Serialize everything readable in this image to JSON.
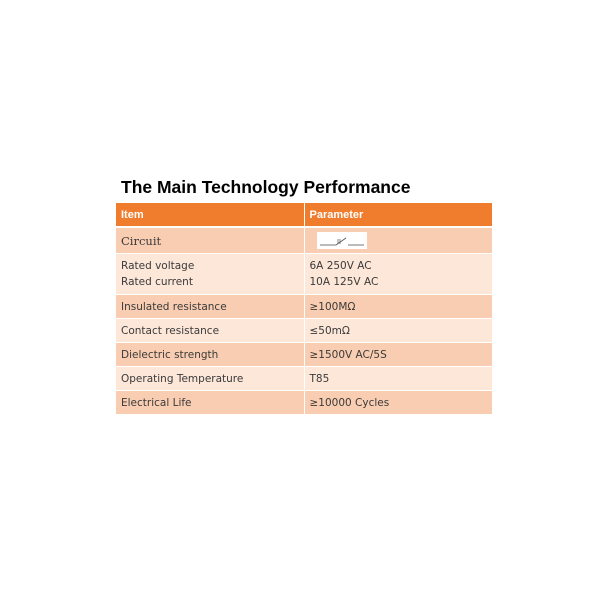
{
  "title": "The Main Technology Performance",
  "table": {
    "headers": [
      "Item",
      "Parameter"
    ],
    "circuit": {
      "label": "Circuit",
      "symbol_icon": "switch-symbol-icon"
    },
    "rated": {
      "items": [
        "Rated voltage",
        "Rated current"
      ],
      "values": [
        "6A 250V AC",
        "10A 125V AC"
      ]
    },
    "rows": [
      {
        "item": "Insulated resistance",
        "value": "≥100MΩ"
      },
      {
        "item": "Contact resistance",
        "value": "≤50mΩ"
      },
      {
        "item": "Dielectric strength",
        "value": "≥1500V AC/5S"
      },
      {
        "item": "Operating Temperature",
        "value": "T85"
      },
      {
        "item": "Electrical Life",
        "value": "≥10000 Cycles"
      }
    ]
  },
  "colors": {
    "header": "#ef7d2d",
    "row_odd": "#f9cdb1",
    "row_even": "#fde7d9"
  }
}
